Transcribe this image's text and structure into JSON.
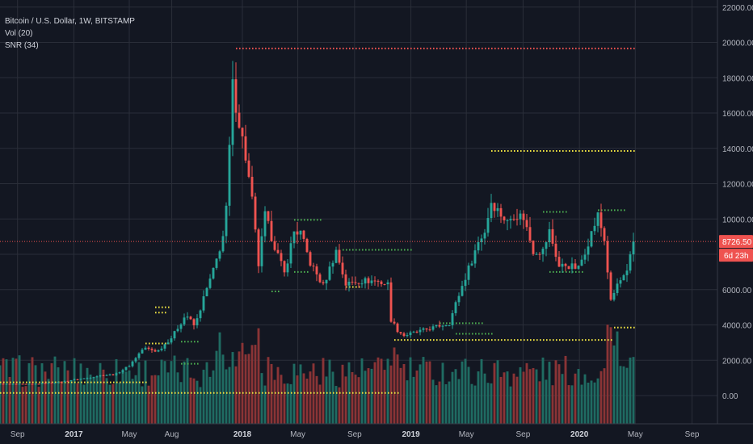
{
  "legend": {
    "title": "Bitcoin / U.S. Dollar, 1W, BITSTAMP",
    "vol": "Vol (20)",
    "snr": "SNR (34)"
  },
  "price_tag": {
    "price": "8726.50",
    "countdown": "6d 23h"
  },
  "colors": {
    "background": "#131722",
    "grid": "#2a2e39",
    "up": "#26a69a",
    "down": "#ef5350",
    "vol_up": "#1f6b62",
    "vol_down": "#8a3436",
    "resistance": "#ef5350",
    "support": "#f0e442",
    "minor_level": "#4caf50",
    "text": "#b2b5be"
  },
  "chart_data": {
    "type": "candlestick",
    "symbol": "Bitcoin / U.S. Dollar",
    "interval": "1W",
    "exchange": "BITSTAMP",
    "last_price": 8726.5,
    "y_axis": {
      "ticks": [
        0,
        2000,
        4000,
        6000,
        8000,
        10000,
        12000,
        14000,
        16000,
        18000,
        20000,
        22000
      ],
      "tick_labels": [
        "0.00",
        "2000.00",
        "4000.00",
        "6000.00",
        "8000.00",
        "10000.00",
        "12000.00",
        "14000.00",
        "16000.00",
        "18000.00",
        "20000.00",
        "22000.00"
      ],
      "range": [
        -1600,
        22400
      ]
    },
    "x_axis": {
      "range": [
        "2016-07-25",
        "2020-10-26"
      ],
      "ticks": [
        {
          "date": "2016-09-01",
          "label": "Sep",
          "bold": false
        },
        {
          "date": "2017-01-01",
          "label": "2017",
          "bold": true
        },
        {
          "date": "2017-05-01",
          "label": "May",
          "bold": false
        },
        {
          "date": "2017-08-01",
          "label": "Aug",
          "bold": false
        },
        {
          "date": "2018-01-01",
          "label": "2018",
          "bold": true
        },
        {
          "date": "2018-05-01",
          "label": "May",
          "bold": false
        },
        {
          "date": "2018-09-01",
          "label": "Sep",
          "bold": false
        },
        {
          "date": "2019-01-01",
          "label": "2019",
          "bold": true
        },
        {
          "date": "2019-05-01",
          "label": "May",
          "bold": false
        },
        {
          "date": "2019-09-01",
          "label": "Sep",
          "bold": false
        },
        {
          "date": "2020-01-01",
          "label": "2020",
          "bold": true
        },
        {
          "date": "2020-05-01",
          "label": "May",
          "bold": false
        },
        {
          "date": "2020-09-01",
          "label": "Sep",
          "bold": false
        }
      ]
    },
    "close_path": [
      [
        "2016-07-25",
        650
      ],
      [
        "2016-10-01",
        640
      ],
      [
        "2016-12-01",
        760
      ],
      [
        "2017-01-02",
        900
      ],
      [
        "2017-02-01",
        1000
      ],
      [
        "2017-03-01",
        1150
      ],
      [
        "2017-04-01",
        1200
      ],
      [
        "2017-05-01",
        1700
      ],
      [
        "2017-06-01",
        2700
      ],
      [
        "2017-07-01",
        2500
      ],
      [
        "2017-08-01",
        3300
      ],
      [
        "2017-09-01",
        4600
      ],
      [
        "2017-09-20",
        3900
      ],
      [
        "2017-10-10",
        5600
      ],
      [
        "2017-11-01",
        7200
      ],
      [
        "2017-11-25",
        9500
      ],
      [
        "2017-12-11",
        17500
      ],
      [
        "2017-12-18",
        16500
      ],
      [
        "2018-01-08",
        13500
      ],
      [
        "2018-01-22",
        11000
      ],
      [
        "2018-02-05",
        7400
      ],
      [
        "2018-02-19",
        10200
      ],
      [
        "2018-03-05",
        9000
      ],
      [
        "2018-04-02",
        6900
      ],
      [
        "2018-04-23",
        9300
      ],
      [
        "2018-05-07",
        9200
      ],
      [
        "2018-05-28",
        7500
      ],
      [
        "2018-06-25",
        6200
      ],
      [
        "2018-07-23",
        8200
      ],
      [
        "2018-08-13",
        6300
      ],
      [
        "2018-09-10",
        6500
      ],
      [
        "2018-10-15",
        6500
      ],
      [
        "2018-11-12",
        6300
      ],
      [
        "2018-11-19",
        4300
      ],
      [
        "2018-12-03",
        3700
      ],
      [
        "2018-12-17",
        3400
      ],
      [
        "2019-01-14",
        3600
      ],
      [
        "2019-02-25",
        3900
      ],
      [
        "2019-03-25",
        4100
      ],
      [
        "2019-04-08",
        5200
      ],
      [
        "2019-05-06",
        7200
      ],
      [
        "2019-05-27",
        8700
      ],
      [
        "2019-06-10",
        9300
      ],
      [
        "2019-06-24",
        11000
      ],
      [
        "2019-07-08",
        10500
      ],
      [
        "2019-07-29",
        9800
      ],
      [
        "2019-08-12",
        10300
      ],
      [
        "2019-09-02",
        10100
      ],
      [
        "2019-09-23",
        8200
      ],
      [
        "2019-10-14",
        8200
      ],
      [
        "2019-10-28",
        9300
      ],
      [
        "2019-11-18",
        7300
      ],
      [
        "2019-12-02",
        7400
      ],
      [
        "2019-12-30",
        7200
      ],
      [
        "2020-01-20",
        8700
      ],
      [
        "2020-02-10",
        10200
      ],
      [
        "2020-02-24",
        8800
      ],
      [
        "2020-03-09",
        5300
      ],
      [
        "2020-03-23",
        6300
      ],
      [
        "2020-04-13",
        6900
      ],
      [
        "2020-04-27",
        8726.5
      ]
    ],
    "sr_levels": [
      {
        "kind": "resistance",
        "from": "2017-12-18",
        "to": "2020-05-04",
        "y": 19650
      },
      {
        "kind": "support",
        "from": "2019-06-24",
        "to": "2020-05-04",
        "y": 13850
      },
      {
        "kind": "support",
        "from": "2018-11-26",
        "to": "2020-03-16",
        "y": 3150
      },
      {
        "kind": "support",
        "from": "2020-03-16",
        "to": "2020-05-04",
        "y": 3850
      },
      {
        "kind": "support",
        "from": "2016-07-25",
        "to": "2018-12-10",
        "y": 150
      },
      {
        "kind": "support",
        "from": "2016-07-25",
        "to": "2017-06-12",
        "y": 750
      },
      {
        "kind": "support",
        "from": "2017-06-05",
        "to": "2017-07-31",
        "y": 2950
      },
      {
        "kind": "support",
        "from": "2017-06-26",
        "to": "2017-07-31",
        "y": 5000
      },
      {
        "kind": "support",
        "from": "2017-06-26",
        "to": "2017-07-24",
        "y": 4700
      },
      {
        "kind": "support",
        "from": "2018-08-13",
        "to": "2018-09-17",
        "y": 6150
      },
      {
        "kind": "minor",
        "from": "2018-04-23",
        "to": "2018-06-25",
        "y": 9950
      },
      {
        "kind": "minor",
        "from": "2018-08-06",
        "to": "2019-01-07",
        "y": 8250
      },
      {
        "kind": "minor",
        "from": "2017-08-21",
        "to": "2017-10-02",
        "y": 3050
      },
      {
        "kind": "minor",
        "from": "2017-08-21",
        "to": "2017-10-02",
        "y": 1800
      },
      {
        "kind": "minor",
        "from": "2018-04-23",
        "to": "2018-05-28",
        "y": 7000
      },
      {
        "kind": "minor",
        "from": "2018-03-05",
        "to": "2018-03-26",
        "y": 5900
      },
      {
        "kind": "minor",
        "from": "2019-10-14",
        "to": "2019-12-09",
        "y": 10400
      },
      {
        "kind": "minor",
        "from": "2020-02-10",
        "to": "2020-04-13",
        "y": 10500
      },
      {
        "kind": "minor",
        "from": "2019-10-28",
        "to": "2020-01-13",
        "y": 7000
      },
      {
        "kind": "minor",
        "from": "2019-04-08",
        "to": "2019-07-01",
        "y": 3500
      },
      {
        "kind": "minor",
        "from": "2019-03-04",
        "to": "2019-06-10",
        "y": 4100
      }
    ]
  }
}
